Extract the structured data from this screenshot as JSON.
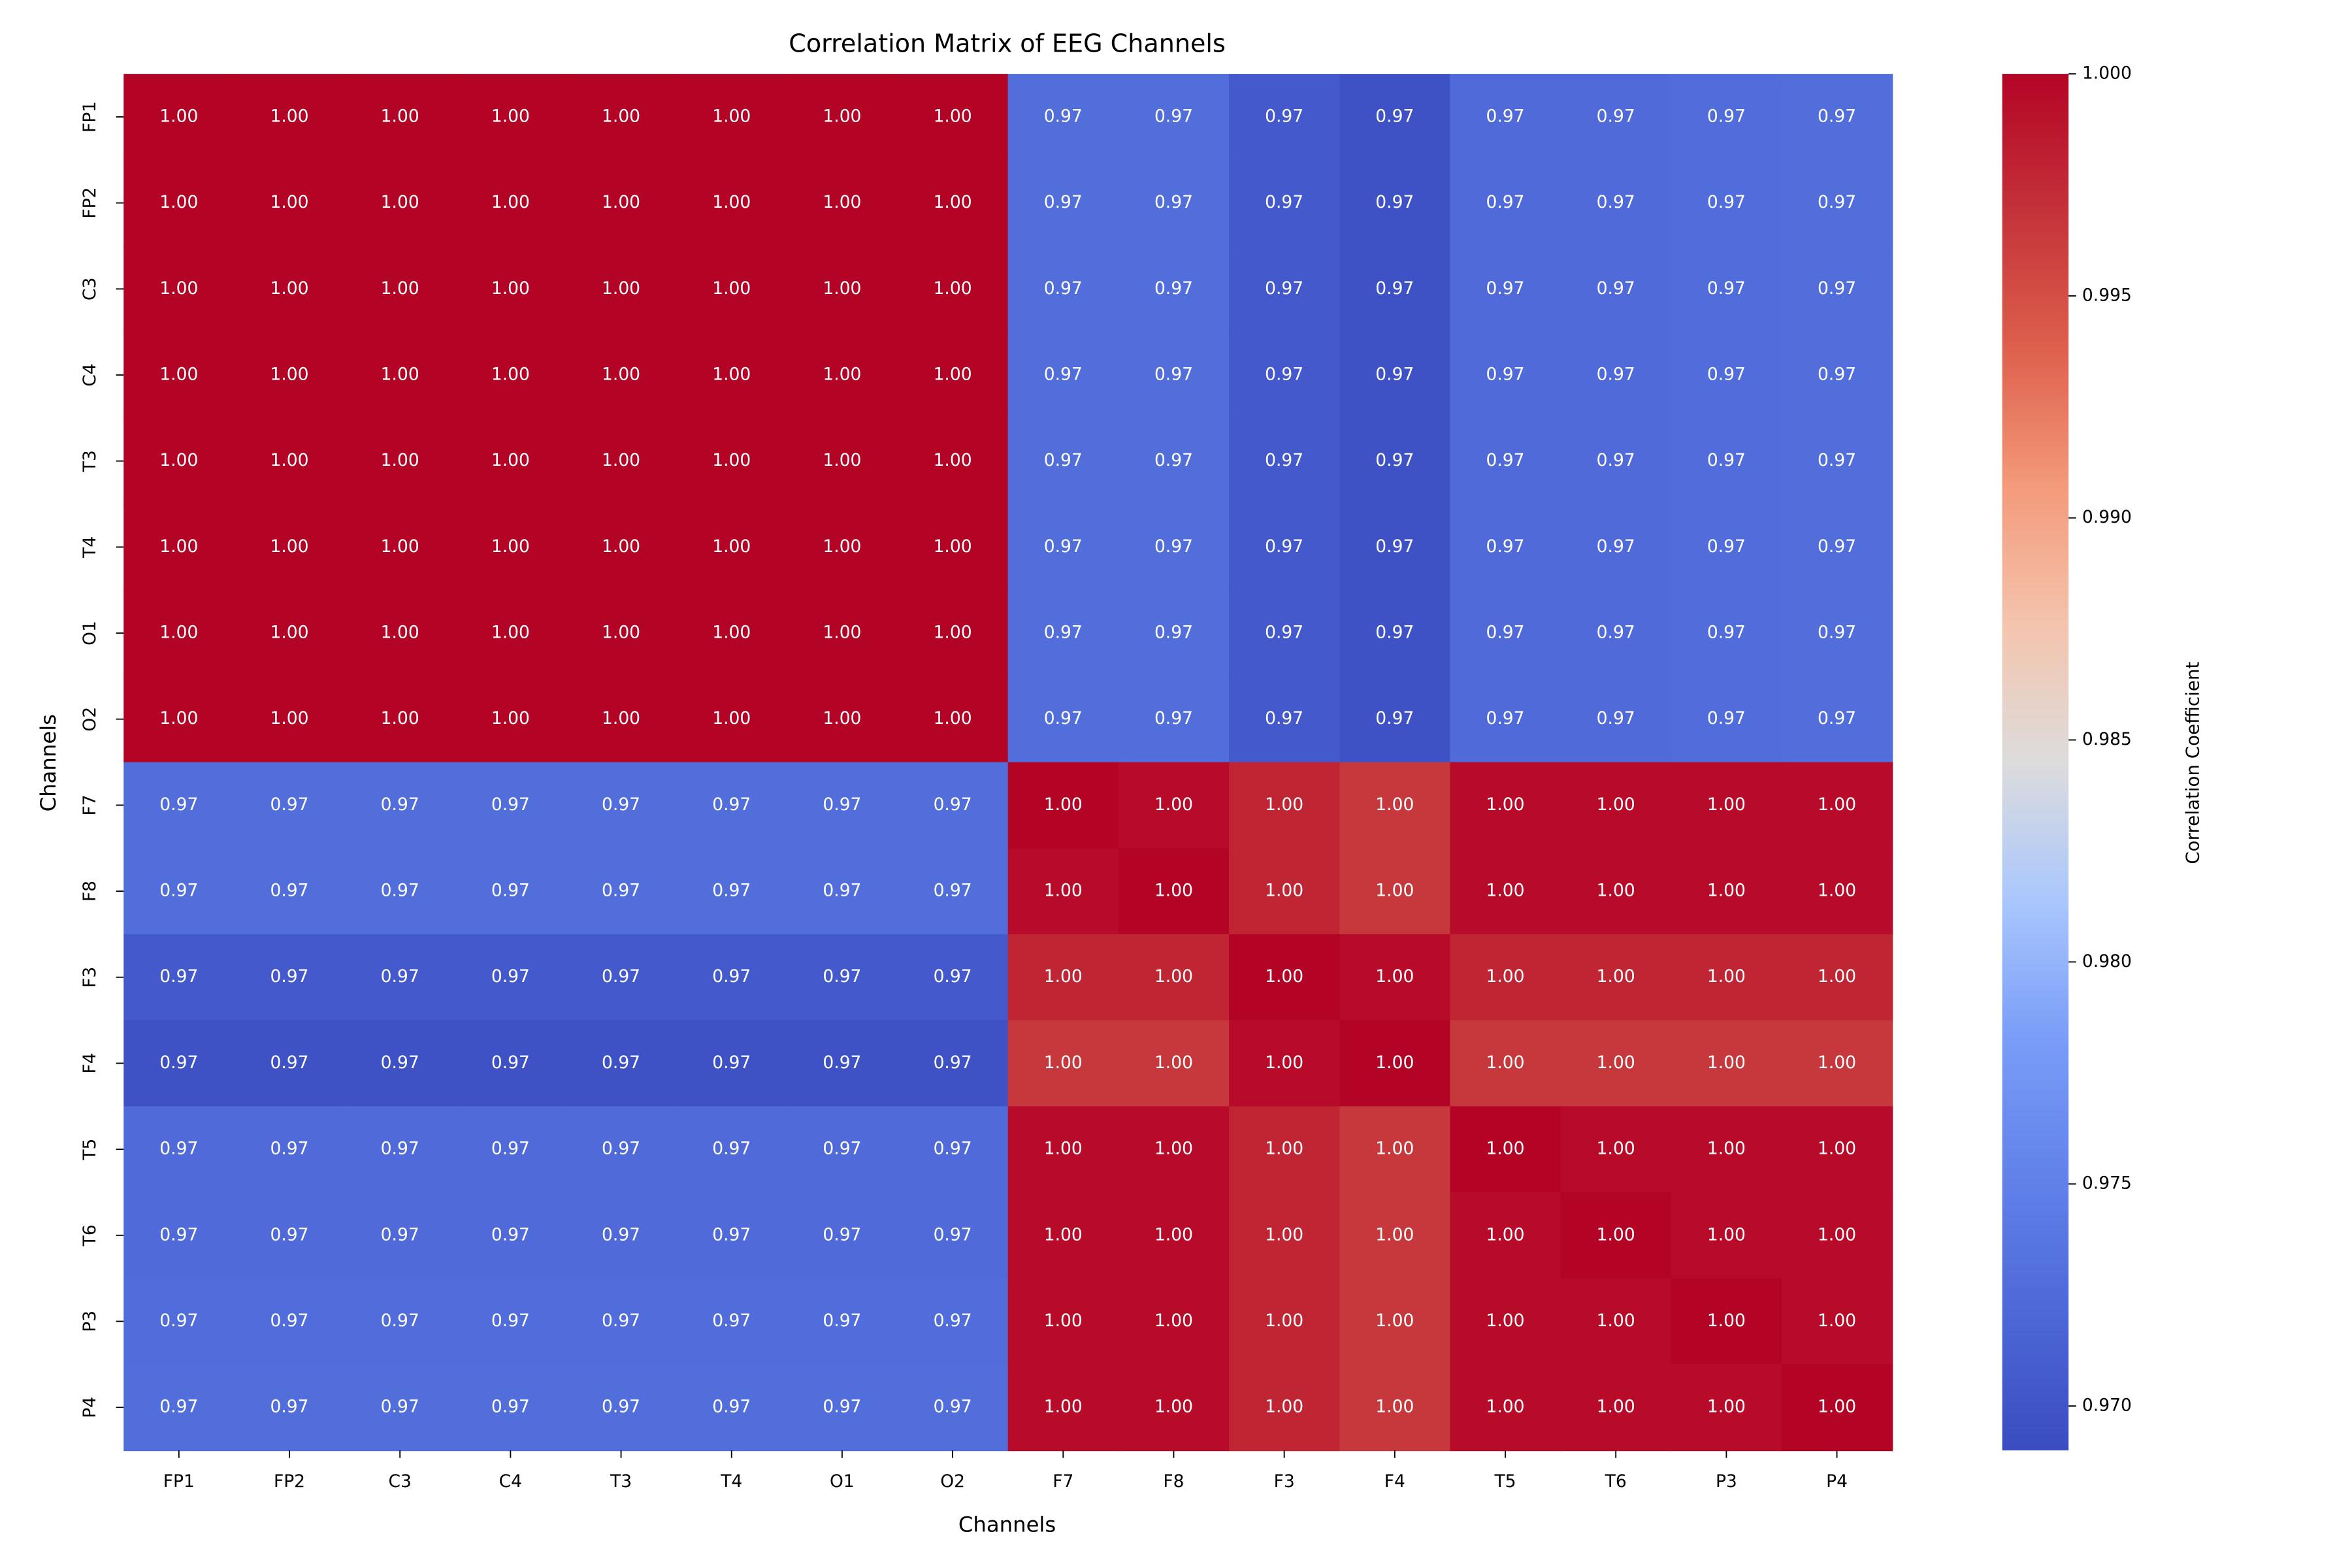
{
  "chart_data": {
    "type": "heatmap",
    "title": "Correlation Matrix of EEG Channels",
    "xlabel": "Channels",
    "ylabel": "Channels",
    "categories": [
      "FP1",
      "FP2",
      "C3",
      "C4",
      "T3",
      "T4",
      "O1",
      "O2",
      "F7",
      "F8",
      "F3",
      "F4",
      "T5",
      "T6",
      "P3",
      "P4"
    ],
    "values": [
      [
        1,
        1,
        1,
        1,
        1,
        1,
        1,
        1,
        0.9728,
        0.9728,
        0.9706,
        0.9697,
        0.9725,
        0.9725,
        0.9727,
        0.9728
      ],
      [
        1,
        1,
        1,
        1,
        1,
        1,
        1,
        1,
        0.9728,
        0.9728,
        0.9706,
        0.9697,
        0.9725,
        0.9725,
        0.9727,
        0.9728
      ],
      [
        1,
        1,
        1,
        1,
        1,
        1,
        1,
        1,
        0.9728,
        0.9728,
        0.9706,
        0.9697,
        0.9725,
        0.9725,
        0.9727,
        0.9728
      ],
      [
        1,
        1,
        1,
        1,
        1,
        1,
        1,
        1,
        0.9728,
        0.9728,
        0.9706,
        0.9697,
        0.9725,
        0.9725,
        0.9727,
        0.9728
      ],
      [
        1,
        1,
        1,
        1,
        1,
        1,
        1,
        1,
        0.9728,
        0.9728,
        0.9706,
        0.9697,
        0.9725,
        0.9725,
        0.9727,
        0.9728
      ],
      [
        1,
        1,
        1,
        1,
        1,
        1,
        1,
        1,
        0.9728,
        0.9728,
        0.9706,
        0.9697,
        0.9725,
        0.9725,
        0.9727,
        0.9728
      ],
      [
        1,
        1,
        1,
        1,
        1,
        1,
        1,
        1,
        0.9728,
        0.9728,
        0.9706,
        0.9697,
        0.9725,
        0.9725,
        0.9727,
        0.9728
      ],
      [
        1,
        1,
        1,
        1,
        1,
        1,
        1,
        1,
        0.9728,
        0.9728,
        0.9706,
        0.9697,
        0.9725,
        0.9725,
        0.9727,
        0.9728
      ],
      [
        0.9728,
        0.9728,
        0.9728,
        0.9728,
        0.9728,
        0.9728,
        0.9728,
        0.9728,
        1,
        0.9995,
        0.9978,
        0.9965,
        0.9995,
        0.9995,
        0.9995,
        0.9995
      ],
      [
        0.9728,
        0.9728,
        0.9728,
        0.9728,
        0.9728,
        0.9728,
        0.9728,
        0.9728,
        0.9995,
        1,
        0.9978,
        0.9965,
        0.9995,
        0.9995,
        0.9995,
        0.9995
      ],
      [
        0.9706,
        0.9706,
        0.9706,
        0.9706,
        0.9706,
        0.9706,
        0.9706,
        0.9706,
        0.9978,
        0.9978,
        1,
        0.9995,
        0.9978,
        0.9978,
        0.9978,
        0.9978
      ],
      [
        0.9697,
        0.9697,
        0.9697,
        0.9697,
        0.9697,
        0.9697,
        0.9697,
        0.9697,
        0.9965,
        0.9965,
        0.9995,
        1,
        0.9965,
        0.9965,
        0.9965,
        0.9965
      ],
      [
        0.9725,
        0.9725,
        0.9725,
        0.9725,
        0.9725,
        0.9725,
        0.9725,
        0.9725,
        0.9995,
        0.9995,
        0.9978,
        0.9965,
        1,
        0.9995,
        0.9995,
        0.9995
      ],
      [
        0.9725,
        0.9725,
        0.9725,
        0.9725,
        0.9725,
        0.9725,
        0.9725,
        0.9725,
        0.9995,
        0.9995,
        0.9978,
        0.9965,
        0.9995,
        1,
        0.9995,
        0.9995
      ],
      [
        0.9727,
        0.9727,
        0.9727,
        0.9727,
        0.9727,
        0.9727,
        0.9727,
        0.9727,
        0.9995,
        0.9995,
        0.9978,
        0.9965,
        0.9995,
        0.9995,
        1,
        0.9995
      ],
      [
        0.9728,
        0.9728,
        0.9728,
        0.9728,
        0.9728,
        0.9728,
        0.9728,
        0.9728,
        0.9995,
        0.9995,
        0.9978,
        0.9965,
        0.9995,
        0.9995,
        0.9995,
        1
      ]
    ],
    "value_labels": [
      [
        "1.00",
        "1.00",
        "1.00",
        "1.00",
        "1.00",
        "1.00",
        "1.00",
        "1.00",
        "0.97",
        "0.97",
        "0.97",
        "0.97",
        "0.97",
        "0.97",
        "0.97",
        "0.97"
      ],
      [
        "1.00",
        "1.00",
        "1.00",
        "1.00",
        "1.00",
        "1.00",
        "1.00",
        "1.00",
        "0.97",
        "0.97",
        "0.97",
        "0.97",
        "0.97",
        "0.97",
        "0.97",
        "0.97"
      ],
      [
        "1.00",
        "1.00",
        "1.00",
        "1.00",
        "1.00",
        "1.00",
        "1.00",
        "1.00",
        "0.97",
        "0.97",
        "0.97",
        "0.97",
        "0.97",
        "0.97",
        "0.97",
        "0.97"
      ],
      [
        "1.00",
        "1.00",
        "1.00",
        "1.00",
        "1.00",
        "1.00",
        "1.00",
        "1.00",
        "0.97",
        "0.97",
        "0.97",
        "0.97",
        "0.97",
        "0.97",
        "0.97",
        "0.97"
      ],
      [
        "1.00",
        "1.00",
        "1.00",
        "1.00",
        "1.00",
        "1.00",
        "1.00",
        "1.00",
        "0.97",
        "0.97",
        "0.97",
        "0.97",
        "0.97",
        "0.97",
        "0.97",
        "0.97"
      ],
      [
        "1.00",
        "1.00",
        "1.00",
        "1.00",
        "1.00",
        "1.00",
        "1.00",
        "1.00",
        "0.97",
        "0.97",
        "0.97",
        "0.97",
        "0.97",
        "0.97",
        "0.97",
        "0.97"
      ],
      [
        "1.00",
        "1.00",
        "1.00",
        "1.00",
        "1.00",
        "1.00",
        "1.00",
        "1.00",
        "0.97",
        "0.97",
        "0.97",
        "0.97",
        "0.97",
        "0.97",
        "0.97",
        "0.97"
      ],
      [
        "1.00",
        "1.00",
        "1.00",
        "1.00",
        "1.00",
        "1.00",
        "1.00",
        "1.00",
        "0.97",
        "0.97",
        "0.97",
        "0.97",
        "0.97",
        "0.97",
        "0.97",
        "0.97"
      ],
      [
        "0.97",
        "0.97",
        "0.97",
        "0.97",
        "0.97",
        "0.97",
        "0.97",
        "0.97",
        "1.00",
        "1.00",
        "1.00",
        "1.00",
        "1.00",
        "1.00",
        "1.00",
        "1.00"
      ],
      [
        "0.97",
        "0.97",
        "0.97",
        "0.97",
        "0.97",
        "0.97",
        "0.97",
        "0.97",
        "1.00",
        "1.00",
        "1.00",
        "1.00",
        "1.00",
        "1.00",
        "1.00",
        "1.00"
      ],
      [
        "0.97",
        "0.97",
        "0.97",
        "0.97",
        "0.97",
        "0.97",
        "0.97",
        "0.97",
        "1.00",
        "1.00",
        "1.00",
        "1.00",
        "1.00",
        "1.00",
        "1.00",
        "1.00"
      ],
      [
        "0.97",
        "0.97",
        "0.97",
        "0.97",
        "0.97",
        "0.97",
        "0.97",
        "0.97",
        "1.00",
        "1.00",
        "1.00",
        "1.00",
        "1.00",
        "1.00",
        "1.00",
        "1.00"
      ],
      [
        "0.97",
        "0.97",
        "0.97",
        "0.97",
        "0.97",
        "0.97",
        "0.97",
        "0.97",
        "1.00",
        "1.00",
        "1.00",
        "1.00",
        "1.00",
        "1.00",
        "1.00",
        "1.00"
      ],
      [
        "0.97",
        "0.97",
        "0.97",
        "0.97",
        "0.97",
        "0.97",
        "0.97",
        "0.97",
        "1.00",
        "1.00",
        "1.00",
        "1.00",
        "1.00",
        "1.00",
        "1.00",
        "1.00"
      ],
      [
        "0.97",
        "0.97",
        "0.97",
        "0.97",
        "0.97",
        "0.97",
        "0.97",
        "0.97",
        "1.00",
        "1.00",
        "1.00",
        "1.00",
        "1.00",
        "1.00",
        "1.00",
        "1.00"
      ],
      [
        "0.97",
        "0.97",
        "0.97",
        "0.97",
        "0.97",
        "0.97",
        "0.97",
        "0.97",
        "1.00",
        "1.00",
        "1.00",
        "1.00",
        "1.00",
        "1.00",
        "1.00",
        "1.00"
      ]
    ],
    "colormap": "coolwarm",
    "colorbar_label": "Correlation Coefficient",
    "clim": [
      0.969,
      1.0
    ],
    "cticks": [
      {
        "value": 0.97,
        "label": "0.970"
      },
      {
        "value": 0.975,
        "label": "0.975"
      },
      {
        "value": 0.98,
        "label": "0.980"
      },
      {
        "value": 0.985,
        "label": "0.985"
      },
      {
        "value": 0.99,
        "label": "0.990"
      },
      {
        "value": 0.995,
        "label": "0.995"
      },
      {
        "value": 1.0,
        "label": "1.000"
      }
    ]
  }
}
